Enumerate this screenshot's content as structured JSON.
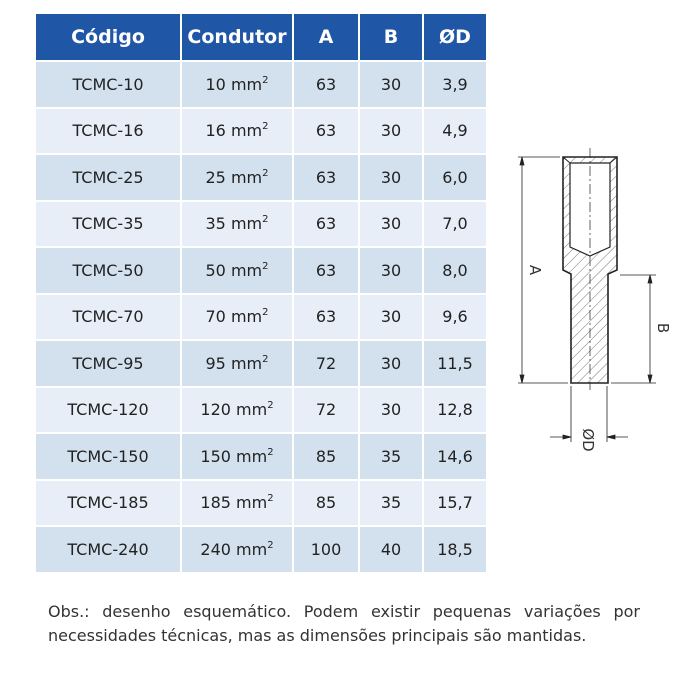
{
  "table": {
    "headers": [
      "Código",
      "Condutor",
      "A",
      "B",
      "ØD"
    ],
    "unit_sup": "2",
    "rows": [
      {
        "codigo": "TCMC-10",
        "condutor": "10 mm",
        "a": "63",
        "b": "30",
        "d": "3,9"
      },
      {
        "codigo": "TCMC-16",
        "condutor": "16 mm",
        "a": "63",
        "b": "30",
        "d": "4,9"
      },
      {
        "codigo": "TCMC-25",
        "condutor": "25 mm",
        "a": "63",
        "b": "30",
        "d": "6,0"
      },
      {
        "codigo": "TCMC-35",
        "condutor": "35 mm",
        "a": "63",
        "b": "30",
        "d": "7,0"
      },
      {
        "codigo": "TCMC-50",
        "condutor": "50 mm",
        "a": "63",
        "b": "30",
        "d": "8,0"
      },
      {
        "codigo": "TCMC-70",
        "condutor": "70 mm",
        "a": "63",
        "b": "30",
        "d": "9,6"
      },
      {
        "codigo": "TCMC-95",
        "condutor": "95 mm",
        "a": "72",
        "b": "30",
        "d": "11,5"
      },
      {
        "codigo": "TCMC-120",
        "condutor": "120 mm",
        "a": "72",
        "b": "30",
        "d": "12,8"
      },
      {
        "codigo": "TCMC-150",
        "condutor": "150 mm",
        "a": "85",
        "b": "35",
        "d": "14,6"
      },
      {
        "codigo": "TCMC-185",
        "condutor": "185 mm",
        "a": "85",
        "b": "35",
        "d": "15,7"
      },
      {
        "codigo": "TCMC-240",
        "condutor": "240 mm",
        "a": "100",
        "b": "40",
        "d": "18,5"
      }
    ]
  },
  "drawing": {
    "label_a": "A",
    "label_b": "B",
    "label_d": "ØD"
  },
  "note": "Obs.: desenho esquemático. Podem existir pequenas variações por necessidades técnicas, mas as dimensões principais são mantidas.",
  "colors": {
    "header": "#1f56a6",
    "row_odd": "#d3e1ef",
    "row_even": "#e7eef7"
  }
}
